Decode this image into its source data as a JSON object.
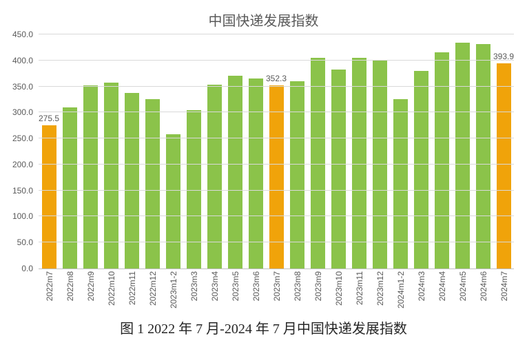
{
  "chart": {
    "type": "bar",
    "title": "中国快递发展指数",
    "title_fontsize": 20,
    "title_color": "#595959",
    "background_color": "#ffffff",
    "grid_color": "#d9d9d9",
    "axis_color": "#bfbfbf",
    "label_color": "#595959",
    "label_fontsize": 12,
    "ylim": [
      0,
      450
    ],
    "ytick_step": 50,
    "yticks": [
      "0.0",
      "50.0",
      "100.0",
      "150.0",
      "200.0",
      "250.0",
      "300.0",
      "350.0",
      "400.0",
      "450.0"
    ],
    "bar_width": 0.7,
    "color_normal": "#8bc34a",
    "color_highlight": "#f0a30a",
    "categories": [
      "2022m7",
      "2022m8",
      "2022m9",
      "2022m10",
      "2022m11",
      "2022m12",
      "2023m1-2",
      "2023m3",
      "2023m4",
      "2023m5",
      "2023m6",
      "2023m7",
      "2023m8",
      "2023m9",
      "2023m10",
      "2023m11",
      "2023m12",
      "2024m1-2",
      "2024m3",
      "2024m4",
      "2024m5",
      "2024m6",
      "2024m7"
    ],
    "values": [
      275.5,
      310,
      352,
      357,
      338,
      326,
      258,
      305,
      353,
      370,
      365,
      352.3,
      360,
      405,
      383,
      405,
      400,
      326,
      380,
      415,
      434,
      432,
      393.9
    ],
    "highlight_indices": [
      0,
      11,
      22
    ],
    "data_labels": {
      "0": "275.5",
      "11": "352.3",
      "22": "393.9"
    }
  },
  "caption": "图 1 2022 年 7 月-2024 年 7 月中国快递发展指数",
  "caption_fontsize": 20,
  "caption_color": "#262626"
}
